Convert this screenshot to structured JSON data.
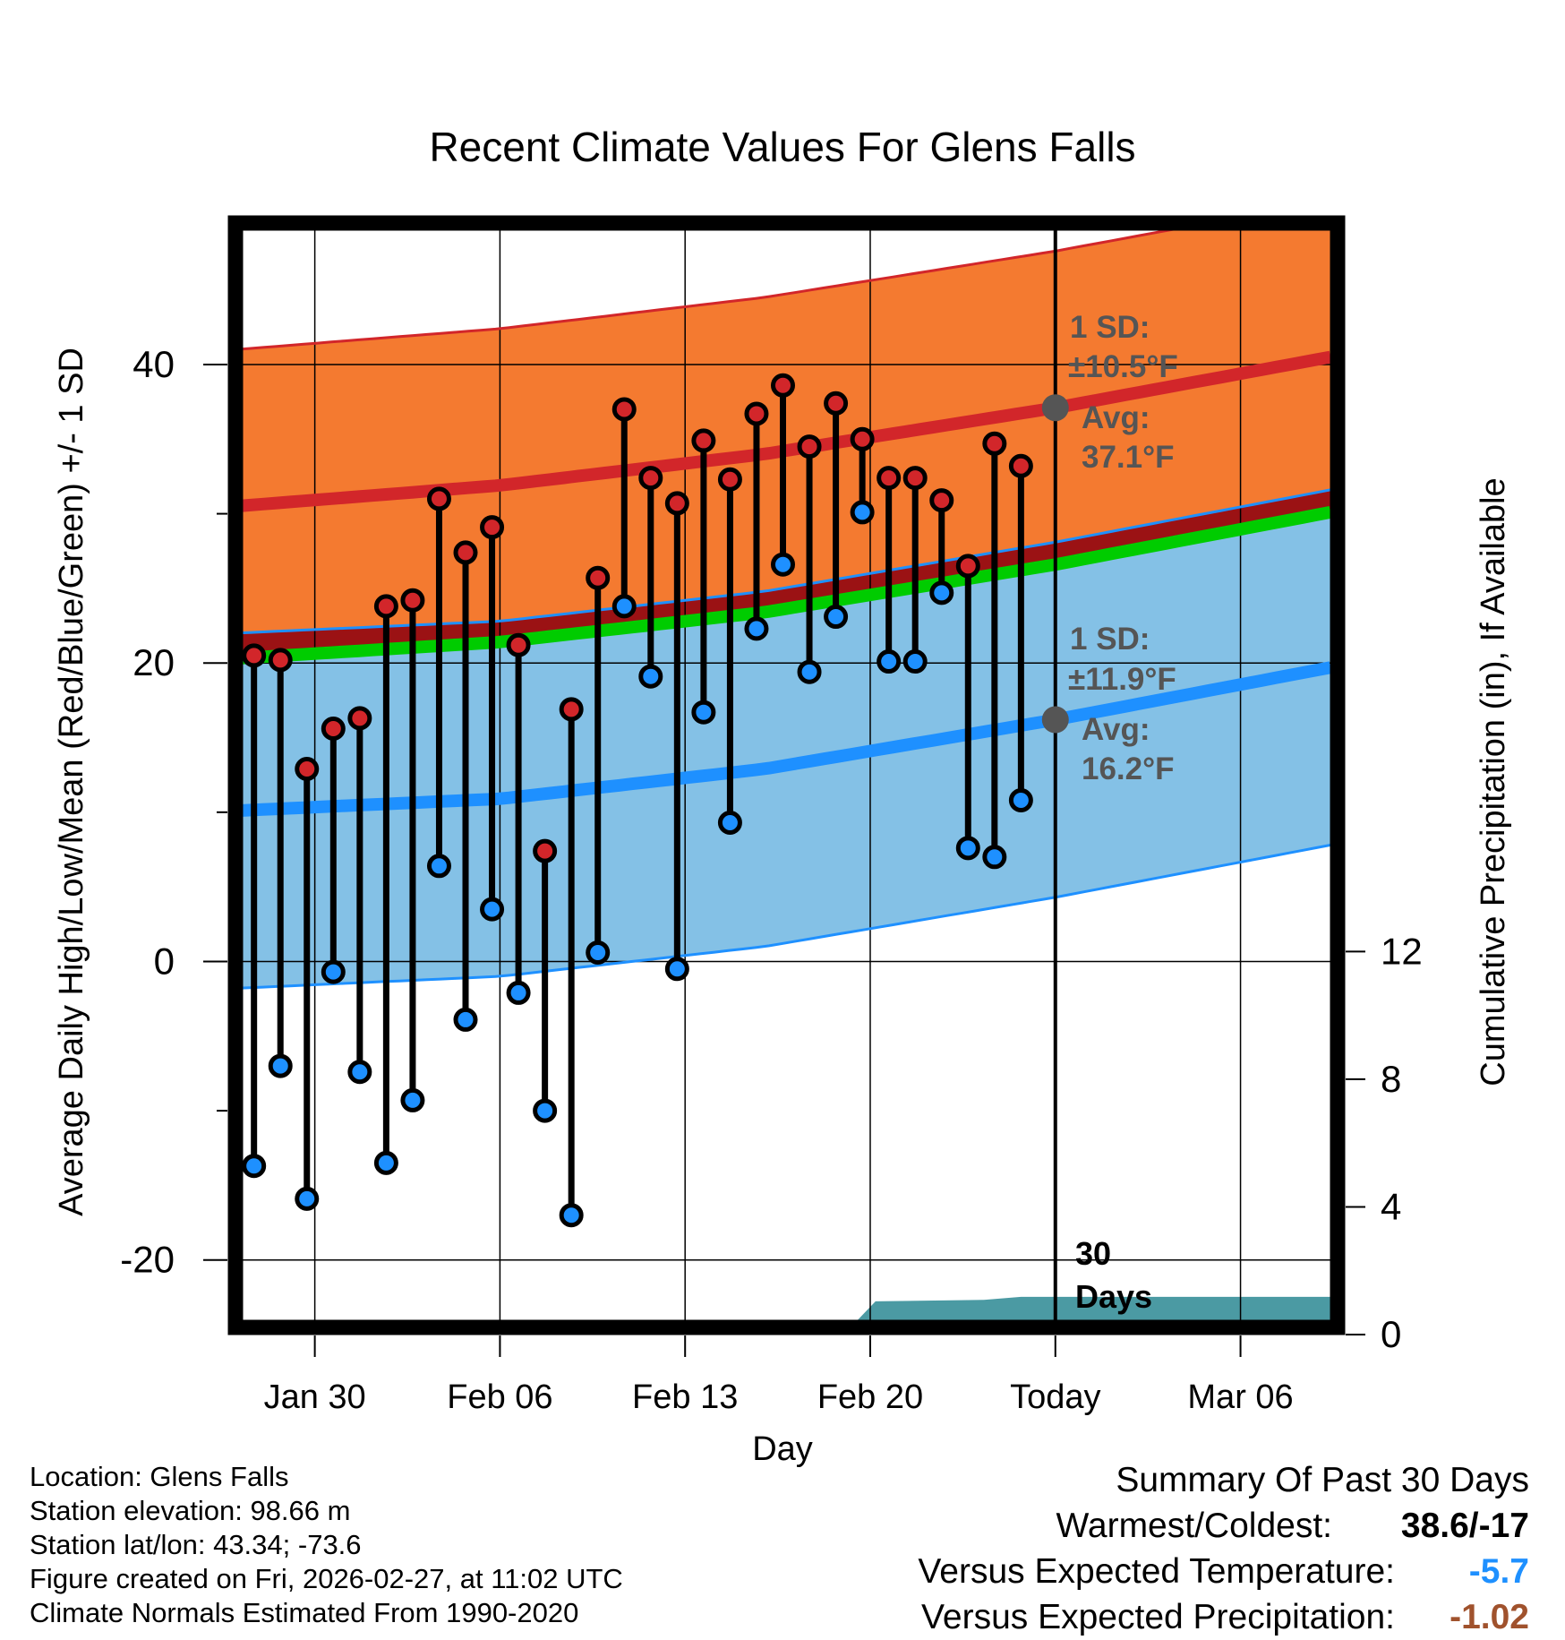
{
  "chart_data": {
    "type": "line",
    "title": "Recent Climate Values For Glens Falls",
    "xlabel": "Day",
    "ylabel": "Average Daily High/Low/Mean (Red/Blue/Green) +/- 1 SD",
    "y2label": "Cumulative Precipitation (in), If Available",
    "x_tick_labels": [
      "Jan 30",
      "Feb 06",
      "Feb 13",
      "Feb 20",
      "Today",
      "Mar 06"
    ],
    "x_tick_days": [
      3,
      10,
      17,
      24,
      31,
      38
    ],
    "x_range_days": [
      0,
      41.4
    ],
    "ylim": [
      -25,
      49
    ],
    "y_ticks": [
      -20,
      0,
      20,
      40
    ],
    "y_tick_labels": [
      "-20",
      "0",
      "20",
      "40"
    ],
    "y_minor_ticks": [
      -10,
      10,
      30
    ],
    "y2lim": [
      0,
      34.6
    ],
    "y2_ticks": [
      0,
      4,
      8,
      12
    ],
    "y2_tick_labels": [
      "0",
      "4",
      "8",
      "12"
    ],
    "today_day": 31,
    "series": [
      {
        "name": "Observed High",
        "color": "#d2262a",
        "days": [
          0.7,
          1.7,
          2.7,
          3.7,
          4.7,
          5.7,
          6.7,
          7.7,
          8.7,
          9.7,
          10.7,
          11.7,
          12.7,
          13.7,
          14.7,
          15.7,
          16.7,
          17.7,
          18.7,
          19.7,
          20.7,
          21.7,
          22.7,
          23.7,
          24.7,
          25.7,
          26.7,
          27.7,
          28.7,
          29.7
        ],
        "values": [
          20.5,
          20.2,
          12.9,
          15.6,
          16.3,
          23.8,
          24.2,
          31.0,
          27.4,
          29.1,
          21.2,
          7.4,
          16.9,
          25.7,
          37.0,
          32.4,
          30.7,
          34.9,
          32.3,
          36.7,
          38.6,
          34.5,
          37.4,
          35.0,
          32.4,
          32.4,
          30.9,
          26.5,
          34.7,
          33.2
        ]
      },
      {
        "name": "Observed Low",
        "color": "#1e90ff",
        "days": [
          0.7,
          1.7,
          2.7,
          3.7,
          4.7,
          5.7,
          6.7,
          7.7,
          8.7,
          9.7,
          10.7,
          11.7,
          12.7,
          13.7,
          14.7,
          15.7,
          16.7,
          17.7,
          18.7,
          19.7,
          20.7,
          21.7,
          22.7,
          23.7,
          24.7,
          25.7,
          26.7,
          27.7,
          28.7,
          29.7
        ],
        "values": [
          -13.7,
          -7.0,
          -15.9,
          -0.7,
          -7.4,
          -13.5,
          -9.3,
          6.4,
          -3.9,
          3.5,
          -2.1,
          -10.0,
          -17.0,
          0.6,
          23.8,
          19.1,
          -0.5,
          16.7,
          9.3,
          22.3,
          26.6,
          19.4,
          23.1,
          30.1,
          20.1,
          20.1,
          24.7,
          7.6,
          7.0,
          10.8
        ]
      },
      {
        "name": "Normal High",
        "color": "#d2262a",
        "days": [
          0,
          10,
          20,
          31,
          41.4
        ],
        "values": [
          30.5,
          31.9,
          34.0,
          37.1,
          40.5
        ],
        "sd": 10.5
      },
      {
        "name": "Normal Low",
        "color": "#1e90ff",
        "days": [
          0,
          10,
          20,
          31,
          41.4
        ],
        "values": [
          10.1,
          10.9,
          12.9,
          16.2,
          19.7
        ],
        "sd": 11.9
      },
      {
        "name": "Normal Mean",
        "color": "#00cc00",
        "days": [
          0,
          10,
          20,
          31,
          41.4
        ],
        "values": [
          20.3,
          21.4,
          23.4,
          26.6,
          30.1
        ]
      },
      {
        "name": "Cumulative Precipitation",
        "color": "#4b9aa3",
        "days": [
          23,
          24.2,
          28.3,
          29.7,
          31,
          41.4
        ],
        "values": [
          0,
          1.04,
          1.09,
          1.18,
          1.18,
          1.18
        ]
      }
    ],
    "annotations": {
      "high_sd_label": "1 SD:",
      "high_sd_value": "±10.5°F",
      "high_avg_label": "Avg:",
      "high_avg_value": "37.1°F",
      "low_sd_label": "1 SD:",
      "low_sd_value": "±11.9°F",
      "low_avg_label": "Avg:",
      "low_avg_value": "16.2°F",
      "days_num": "30",
      "days_word": "Days"
    }
  },
  "footer": {
    "location": "Location: Glens Falls",
    "elevation": "Station elevation: 98.66 m",
    "latlon": "Station lat/lon: 43.34; -73.6",
    "created": "Figure created on Fri, 2026-02-27, at 11:02 UTC",
    "normals": "Climate Normals Estimated From 1990-2020"
  },
  "summary": {
    "title": "Summary Of Past 30 Days",
    "warm_cold_label": "Warmest/Coldest:",
    "warm_cold_value": "38.6/-17",
    "temp_label": "Versus Expected Temperature:",
    "temp_value": "-5.7",
    "temp_color": "#1e90ff",
    "precip_label": "Versus Expected Precipitation:",
    "precip_value": "-1.02",
    "precip_color": "#a0522d"
  },
  "colors": {
    "high_band": "#f47a30",
    "low_band": "#84c1e6",
    "overlap": "#9b1214",
    "mean_line": "#00cc00",
    "precip_fill": "#4b9aa3",
    "annotation_text": "#555555"
  }
}
